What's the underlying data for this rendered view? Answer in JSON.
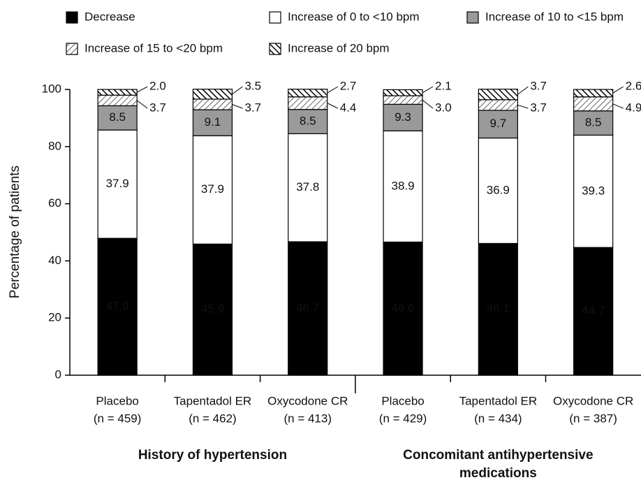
{
  "chart_data": {
    "type": "stacked-bar",
    "y_label": "Percentage of patients",
    "groups": [
      [
        "History of hypertension"
      ],
      [
        "Concomitant antihypertensive",
        "medications"
      ]
    ],
    "categories": [
      [
        "Placebo",
        "(n = 459)"
      ],
      [
        "Tapentadol ER",
        "(n = 462)"
      ],
      [
        "Oxycodone CR",
        "(n = 413)"
      ],
      [
        "Placebo",
        "(n = 429)"
      ],
      [
        "Tapentadol ER",
        "(n = 434)"
      ],
      [
        "Oxycodone CR",
        "(n = 387)"
      ]
    ],
    "series": [
      {
        "name": "Decrease",
        "color": "#000000",
        "values": [
          47.9,
          45.9,
          46.7,
          46.6,
          46.1,
          44.7
        ],
        "value_labels": [
          "47.9",
          "45.9",
          "46.7",
          "46.6",
          "46.1",
          "44.7"
        ]
      },
      {
        "name": "Increase of 0 to <10 bpm",
        "color": "#ffffff",
        "values": [
          37.9,
          37.9,
          37.8,
          38.9,
          36.9,
          39.3
        ],
        "value_labels": [
          "37.9",
          "37.9",
          "37.8",
          "38.9",
          "36.9",
          "39.3"
        ]
      },
      {
        "name": "Increase of 10 to <15 bpm",
        "color": "#9a9a9a",
        "values": [
          8.5,
          9.1,
          8.5,
          9.3,
          9.7,
          8.5
        ],
        "value_labels": [
          "8.5",
          "9.1",
          "8.5",
          "9.3",
          "9.7",
          "8.5"
        ]
      },
      {
        "name": "Increase of 15 to <20 bpm",
        "color": "#ffffff",
        "pattern": "thin-forward-hatch",
        "values": [
          3.7,
          3.7,
          4.4,
          3.0,
          3.7,
          4.9
        ],
        "value_labels": [
          "3.7",
          "3.7",
          "4.4",
          "3.0",
          "3.7",
          "4.9"
        ]
      },
      {
        "name": "Increase of 20 bpm",
        "color": "#ffffff",
        "pattern": "thick-back-hatch",
        "values": [
          2.0,
          3.5,
          2.7,
          2.1,
          3.7,
          2.6
        ],
        "value_labels": [
          "2.0",
          "3.5",
          "2.7",
          "2.1",
          "3.7",
          "2.6"
        ]
      }
    ],
    "ylim": [
      0,
      100
    ],
    "yticks": [
      0,
      20,
      40,
      60,
      80,
      100
    ]
  }
}
